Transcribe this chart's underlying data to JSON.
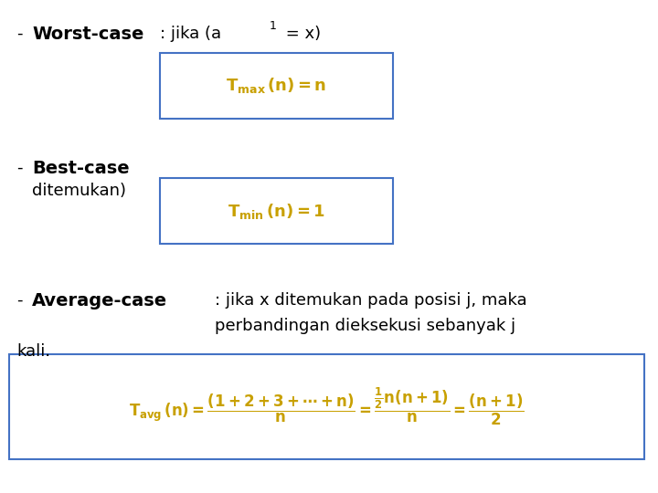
{
  "bg_color": "#ffffff",
  "text_color": "#000000",
  "box_color": "#4472c4",
  "worst_case_label": "Worst-case",
  "worst_case_formula": "$\\mathbf{T_{max}\\,(n) = n}$",
  "best_case_label": "Best-case",
  "best_case_line2": "ditemukan)",
  "best_case_formula": "$\\mathbf{T_{min}\\,(n) = 1}$",
  "avg_case_label": "Average-case",
  "avg_case_desc1": ": jika x ditemukan pada posisi j, maka",
  "avg_case_desc2": "perbandingan dieksekusi sebanyak j",
  "avg_case_line3": "kali.",
  "avg_case_formula": "$\\mathbf{T_{avg}\\,(n) = \\dfrac{(1+2+3+\\cdots+n)}{n} = \\dfrac{\\frac{1}{2}n(n+1)}{n} = \\dfrac{(n+1)}{2}}$",
  "figsize": [
    7.2,
    5.4
  ],
  "dpi": 100
}
